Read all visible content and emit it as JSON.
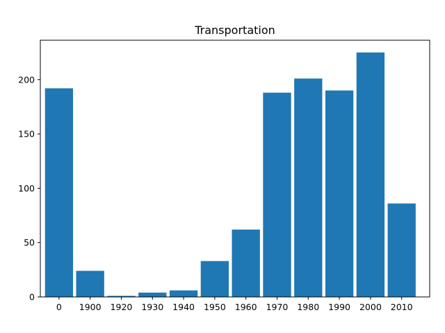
{
  "chart_data": {
    "type": "bar",
    "title": "Transportation",
    "xlabel": "",
    "ylabel": "",
    "categories": [
      "0",
      "1900",
      "1920",
      "1930",
      "1940",
      "1950",
      "1960",
      "1970",
      "1980",
      "1990",
      "2000",
      "2010"
    ],
    "values": [
      192,
      24,
      1,
      4,
      6,
      33,
      62,
      188,
      201,
      190,
      225,
      86
    ],
    "ylim": [
      0,
      236.25
    ],
    "yticks": [
      0,
      50,
      100,
      150,
      200
    ],
    "bar_color": "#1f77b4",
    "grid": false,
    "legend": "none"
  }
}
